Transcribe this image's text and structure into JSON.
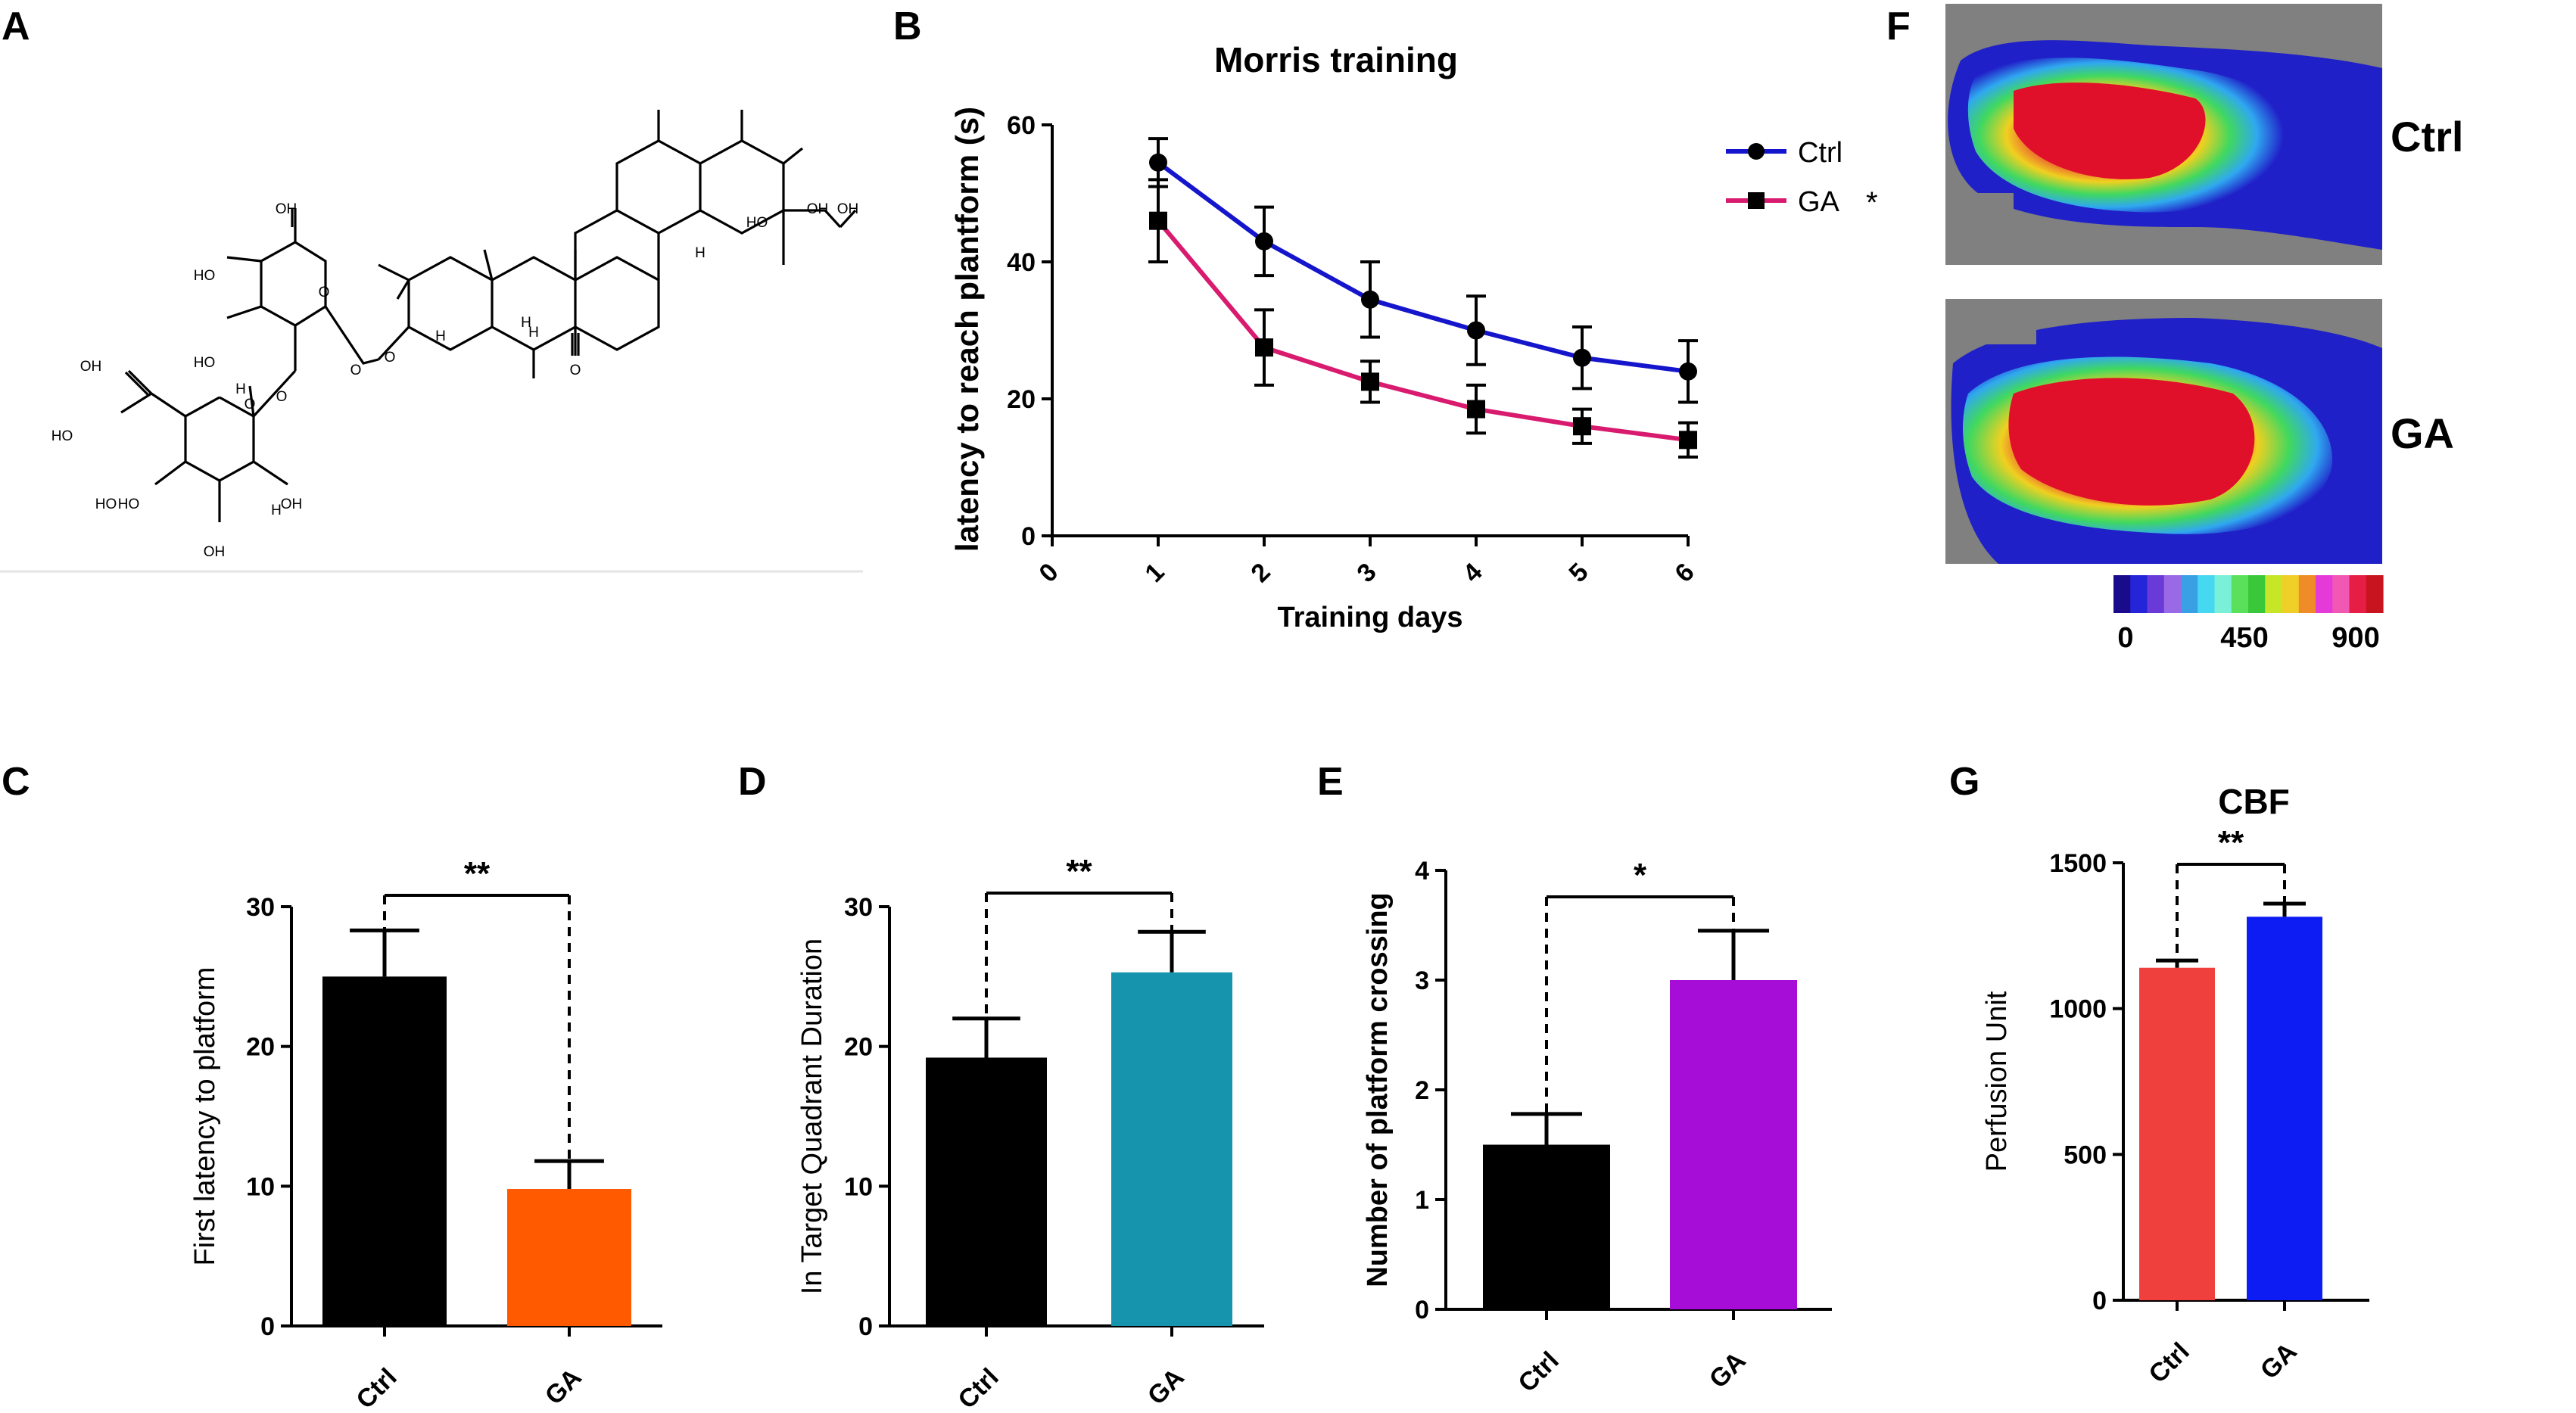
{
  "panel_labels": {
    "A": "A",
    "B": "B",
    "C": "C",
    "D": "D",
    "E": "E",
    "F": "F",
    "G": "G"
  },
  "chem_labels": [
    "OH",
    "HO",
    "HO",
    "O",
    "O",
    "O",
    "OH",
    "HO",
    "H",
    "O",
    "H",
    "HO",
    "HO",
    "OH",
    "OH",
    "H",
    "H",
    "H",
    "O",
    "H",
    "OH",
    "O",
    "HO",
    "OH"
  ],
  "panel_F": {
    "labels": [
      "Ctrl",
      "GA"
    ],
    "colorbar_ticks": [
      "0",
      "450",
      "900"
    ],
    "colorbar_colors": [
      "#1a0a8c",
      "#2424d8",
      "#6a3ad8",
      "#9a6ae6",
      "#3aa0e6",
      "#46d8f0",
      "#7af0d8",
      "#5ae05a",
      "#3ac83a",
      "#c8e628",
      "#f0d028",
      "#f08c28",
      "#e63ad8",
      "#f058b4",
      "#e61e46",
      "#c8141e"
    ]
  },
  "chart_data": [
    {
      "panel": "B",
      "type": "line",
      "title": "Morris training",
      "xlabel": "Training days",
      "ylabel": "latency to reach plantform (s)",
      "x": [
        1,
        2,
        3,
        4,
        5,
        6
      ],
      "xlim": [
        0,
        6
      ],
      "ylim": [
        0,
        60
      ],
      "xticks": [
        "0",
        "1",
        "2",
        "3",
        "4",
        "5",
        "6"
      ],
      "yticks": [
        "0",
        "20",
        "40",
        "60"
      ],
      "legend_position": "top-right",
      "series": [
        {
          "name": "Ctrl",
          "marker": "circle",
          "color": "#1515cc",
          "legend_suffix": "",
          "values": [
            54.5,
            43,
            34.5,
            30,
            26,
            24
          ],
          "errors": [
            3.5,
            5,
            5.5,
            5,
            4.5,
            4.5
          ]
        },
        {
          "name": "GA",
          "marker": "square",
          "color": "#d81b6e",
          "legend_suffix": "*",
          "values": [
            46,
            27.5,
            22.5,
            18.5,
            16,
            14
          ],
          "errors": [
            6,
            5.5,
            3,
            3.5,
            2.5,
            2.5
          ]
        }
      ]
    },
    {
      "panel": "C",
      "type": "bar",
      "title": "",
      "xlabel": "",
      "ylabel": "First latency to platform",
      "categories": [
        "Ctrl",
        "GA"
      ],
      "values": [
        25,
        9.8
      ],
      "errors": [
        3.3,
        2.0
      ],
      "colors": [
        "#000000",
        "#ff5a00"
      ],
      "ylim": [
        0,
        30
      ],
      "yticks": [
        "0",
        "10",
        "20",
        "30"
      ],
      "significance": "**"
    },
    {
      "panel": "D",
      "type": "bar",
      "title": "",
      "xlabel": "",
      "ylabel": "In Target Quadrant Duration",
      "categories": [
        "Ctrl",
        "GA"
      ],
      "values": [
        19.2,
        25.3
      ],
      "errors": [
        2.8,
        2.9
      ],
      "colors": [
        "#000000",
        "#1794ad"
      ],
      "ylim": [
        0,
        30
      ],
      "yticks": [
        "0",
        "10",
        "20",
        "30"
      ],
      "significance": "**"
    },
    {
      "panel": "E",
      "type": "bar",
      "title": "",
      "xlabel": "",
      "ylabel": "Number of platform crossing",
      "categories": [
        "Ctrl",
        "GA"
      ],
      "values": [
        1.5,
        3.0
      ],
      "errors": [
        0.28,
        0.45
      ],
      "colors": [
        "#000000",
        "#a60ed8"
      ],
      "ylim": [
        0,
        4
      ],
      "yticks": [
        "0",
        "1",
        "2",
        "3",
        "4"
      ],
      "significance": "*"
    },
    {
      "panel": "G",
      "type": "bar",
      "title": "CBF",
      "xlabel": "",
      "ylabel": "Perfusion Unit",
      "categories": [
        "Ctrl",
        "GA"
      ],
      "values": [
        1140,
        1315
      ],
      "errors": [
        25,
        45
      ],
      "colors": [
        "#f0403e",
        "#0c1cf2"
      ],
      "ylim": [
        0,
        1500
      ],
      "yticks": [
        "0",
        "500",
        "1000",
        "1500"
      ],
      "significance": "**"
    }
  ]
}
